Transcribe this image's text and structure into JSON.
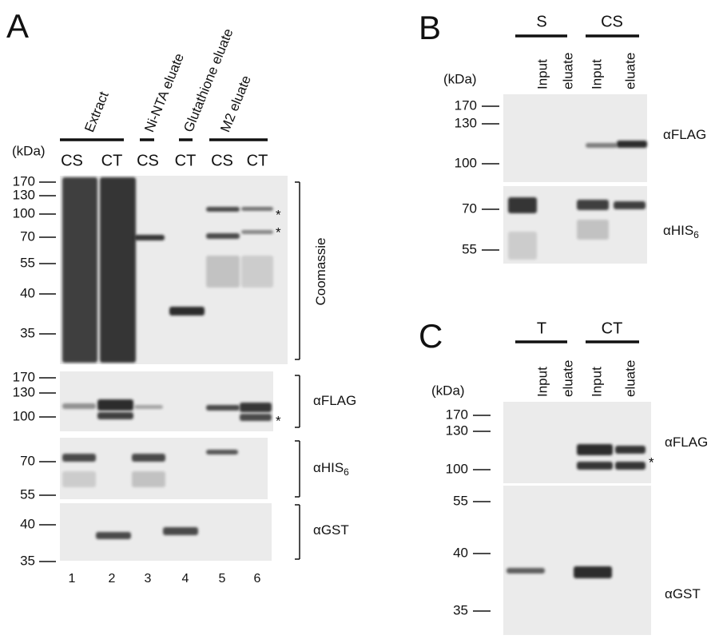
{
  "panels": [
    {
      "label": "A",
      "kda_label": "(kDa)",
      "groups": [
        "Extract",
        "Ni-NTA eluate",
        "Glutathione eluate",
        "M2 eluate"
      ],
      "lanes": [
        "CS",
        "CT",
        "CS",
        "CT",
        "CS",
        "CT"
      ],
      "lane_numbers": [
        "1",
        "2",
        "3",
        "4",
        "5",
        "6"
      ],
      "blots": [
        {
          "name": "Coomassie",
          "markers": [
            "170",
            "130",
            "100",
            "70",
            "55",
            "40",
            "35"
          ],
          "stars": [
            "*",
            "*"
          ]
        },
        {
          "name": "αFLAG",
          "markers": [
            "170",
            "130",
            "100"
          ],
          "stars": [
            "*"
          ]
        },
        {
          "name": "αHIS",
          "sub": "6",
          "markers": [
            "70",
            "55"
          ]
        },
        {
          "name": "αGST",
          "markers": [
            "40",
            "35"
          ]
        }
      ]
    },
    {
      "label": "B",
      "kda_label": "(kDa)",
      "groups": [
        "S",
        "CS"
      ],
      "lanes": [
        "Input",
        "eluate",
        "Input",
        "eluate"
      ],
      "blots": [
        {
          "name": "αFLAG",
          "markers": [
            "170",
            "130",
            "100"
          ]
        },
        {
          "name": "αHIS",
          "sub": "6",
          "markers": [
            "70",
            "55"
          ]
        }
      ]
    },
    {
      "label": "C",
      "kda_label": "(kDa)",
      "groups": [
        "T",
        "CT"
      ],
      "lanes": [
        "Input",
        "eluate",
        "Input",
        "eluate"
      ],
      "blots": [
        {
          "name": "αFLAG",
          "markers": [
            "170",
            "130",
            "100"
          ],
          "stars": [
            "*"
          ]
        },
        {
          "name": "αGST",
          "markers": [
            "55",
            "40",
            "35"
          ]
        }
      ]
    }
  ]
}
